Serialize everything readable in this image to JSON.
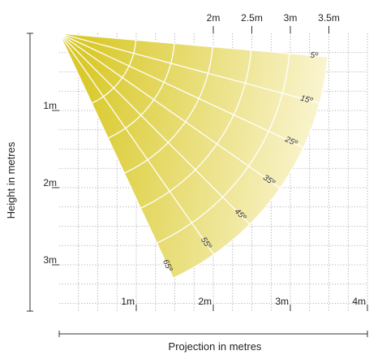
{
  "chart_data": {
    "type": "diagram",
    "subject": "light beam coverage fan",
    "xlabel": "Projection in metres",
    "ylabel": "Height in metres",
    "xlim": [
      0,
      4
    ],
    "ylim": [
      0,
      3.6
    ],
    "x_ticks": [
      {
        "value": 1,
        "label": "1m"
      },
      {
        "value": 2,
        "label": "2m"
      },
      {
        "value": 3,
        "label": "3m"
      },
      {
        "value": 4,
        "label": "4m"
      }
    ],
    "y_ticks": [
      {
        "value": 1,
        "label": "1m"
      },
      {
        "value": 2,
        "label": "2m"
      },
      {
        "value": 3,
        "label": "3m"
      }
    ],
    "radius_labels": [
      {
        "value": 2,
        "label": "2m"
      },
      {
        "value": 2.5,
        "label": "2.5m"
      },
      {
        "value": 3,
        "label": "3m"
      },
      {
        "value": 3.5,
        "label": "3.5m"
      }
    ],
    "radii": [
      1,
      1.5,
      2,
      2.5,
      3,
      3.5
    ],
    "angles": [
      5,
      15,
      25,
      35,
      45,
      55,
      65
    ],
    "angle_labels": [
      "5º",
      "15º",
      "25º",
      "35º",
      "45º",
      "55º",
      "65º"
    ],
    "grid": true,
    "colors": {
      "fill_dark": "#d9c92a",
      "fill_light": "#fbf6d6",
      "grid": "#9a9a9a",
      "spokes": "#ffffff"
    }
  }
}
